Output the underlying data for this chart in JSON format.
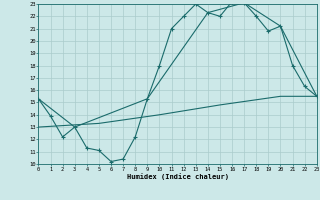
{
  "xlabel": "Humidex (Indice chaleur)",
  "bg_color": "#cce8e8",
  "line_color": "#1a6b6b",
  "grid_color": "#aacccc",
  "xlim": [
    0,
    23
  ],
  "ylim": [
    10,
    23
  ],
  "xticks": [
    0,
    1,
    2,
    3,
    4,
    5,
    6,
    7,
    8,
    9,
    10,
    11,
    12,
    13,
    14,
    15,
    16,
    17,
    18,
    19,
    20,
    21,
    22,
    23
  ],
  "yticks": [
    10,
    11,
    12,
    13,
    14,
    15,
    16,
    17,
    18,
    19,
    20,
    21,
    22,
    23
  ],
  "line1_x": [
    0,
    1,
    2,
    3,
    4,
    5,
    6,
    7,
    8,
    9,
    10,
    11,
    12,
    13,
    14,
    15,
    16,
    17,
    18,
    19,
    20,
    21,
    22,
    23
  ],
  "line1_y": [
    15.3,
    13.9,
    12.2,
    13.0,
    11.3,
    11.1,
    10.2,
    10.4,
    12.2,
    15.3,
    18.0,
    21.0,
    22.0,
    23.0,
    22.3,
    22.0,
    23.2,
    23.1,
    22.0,
    20.8,
    21.2,
    18.0,
    16.3,
    15.5
  ],
  "line2_x": [
    0,
    3,
    9,
    14,
    17,
    20,
    23
  ],
  "line2_y": [
    15.3,
    13.0,
    15.3,
    22.3,
    23.1,
    21.2,
    15.5
  ],
  "line3_x": [
    0,
    5,
    10,
    15,
    20,
    23
  ],
  "line3_y": [
    13.0,
    13.3,
    14.0,
    14.8,
    15.5,
    15.5
  ]
}
